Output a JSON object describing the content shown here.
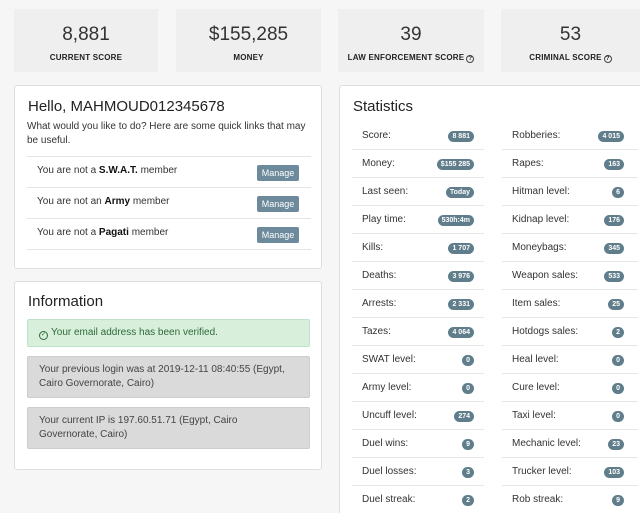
{
  "summary": [
    {
      "value": "8,881",
      "label": "CURRENT SCORE",
      "help": false
    },
    {
      "value": "$155,285",
      "label": "MONEY",
      "help": false
    },
    {
      "value": "39",
      "label": "LAW ENFORCEMENT SCORE",
      "help": true
    },
    {
      "value": "53",
      "label": "CRIMINAL SCORE",
      "help": true
    }
  ],
  "hello": {
    "title": "Hello, MAHMOUD012345678",
    "intro": "What would you like to do? Here are some quick links that may be useful.",
    "links": [
      {
        "prefix": "You are not a ",
        "group": "S.W.A.T.",
        "suffix": " member",
        "button": "Manage"
      },
      {
        "prefix": "You are not an ",
        "group": "Army",
        "suffix": " member",
        "button": "Manage"
      },
      {
        "prefix": "You are not a ",
        "group": "Pagati",
        "suffix": " member",
        "button": "Manage"
      }
    ]
  },
  "information": {
    "title": "Information",
    "verified": "Your email address has been verified.",
    "previous_login": "Your previous login was at 2019-12-11 08:40:55 (Egypt, Cairo Governorate, Cairo)",
    "current_ip": "Your current IP is 197.60.51.71 (Egypt, Cairo Governorate, Cairo)"
  },
  "statistics": {
    "title": "Statistics",
    "left": [
      {
        "name": "Score:",
        "value": "8 881"
      },
      {
        "name": "Money:",
        "value": "$155 285"
      },
      {
        "name": "Last seen:",
        "value": "Today"
      },
      {
        "name": "Play time:",
        "value": "530h:4m"
      },
      {
        "name": "Kills:",
        "value": "1 707"
      },
      {
        "name": "Deaths:",
        "value": "3 976"
      },
      {
        "name": "Arrests:",
        "value": "2 331"
      },
      {
        "name": "Tazes:",
        "value": "4 064"
      },
      {
        "name": "SWAT level:",
        "value": "0"
      },
      {
        "name": "Army level:",
        "value": "0"
      },
      {
        "name": "Uncuff level:",
        "value": "274"
      },
      {
        "name": "Duel wins:",
        "value": "9"
      },
      {
        "name": "Duel losses:",
        "value": "3"
      },
      {
        "name": "Duel streak:",
        "value": "2"
      }
    ],
    "right": [
      {
        "name": "Robberies:",
        "value": "4 015"
      },
      {
        "name": "Rapes:",
        "value": "163"
      },
      {
        "name": "Hitman level:",
        "value": "6"
      },
      {
        "name": "Kidnap level:",
        "value": "176"
      },
      {
        "name": "Moneybags:",
        "value": "345"
      },
      {
        "name": "Weapon sales:",
        "value": "533"
      },
      {
        "name": "Item sales:",
        "value": "25"
      },
      {
        "name": "Hotdogs sales:",
        "value": "2"
      },
      {
        "name": "Heal level:",
        "value": "0"
      },
      {
        "name": "Cure level:",
        "value": "0"
      },
      {
        "name": "Taxi level:",
        "value": "0"
      },
      {
        "name": "Mechanic level:",
        "value": "23"
      },
      {
        "name": "Trucker level:",
        "value": "103"
      },
      {
        "name": "Rob streak:",
        "value": "9"
      }
    ]
  }
}
